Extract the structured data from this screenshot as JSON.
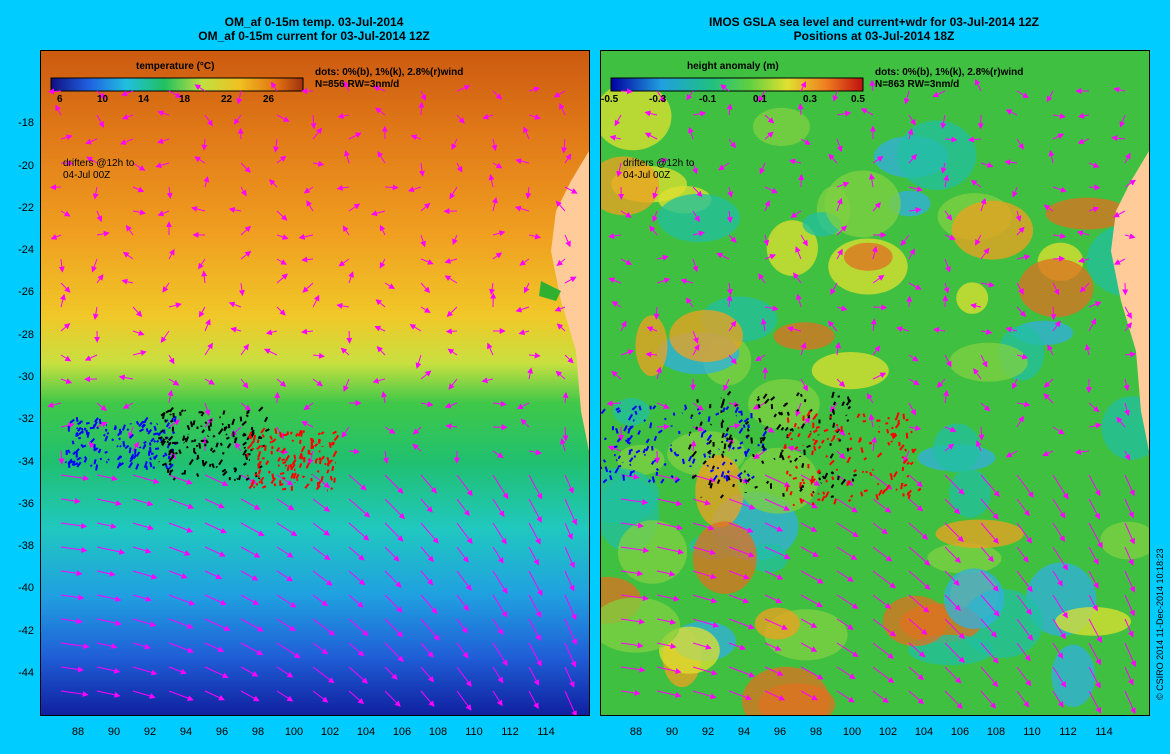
{
  "left_panel": {
    "title_line1": "OM_af 0-15m temp. 03-Jul-2014",
    "title_line2": "OM_af 0-15m current for 03-Jul-2014 12Z",
    "colorbar_label": "temperature (°C)",
    "colorbar_ticks": [
      "6",
      "10",
      "14",
      "18",
      "22",
      "26"
    ],
    "info_line1": "dots: 0%(b), 1%(k), 2.8%(r)wind",
    "info_line2": "N=856 RW=3nm/d",
    "drifter_note_line1": "drifters @12h to",
    "drifter_note_line2": "04-Jul 00Z"
  },
  "right_panel": {
    "title_line1": "IMOS GSLA sea level and current+wdr for 03-Jul-2014 12Z",
    "title_line2": "Positions at 03-Jul-2014 18Z",
    "colorbar_label": "height anomaly (m)",
    "colorbar_ticks": [
      "-0.5",
      "-0.3",
      "-0.1",
      "0.1",
      "0.3",
      "0.5"
    ],
    "info_line1": "dots: 0%(b), 1%(k), 2.8%(r)wind",
    "info_line2": "N=863 RW=3nm/d",
    "drifter_note_line1": "drifters @12h to",
    "drifter_note_line2": "04-Jul 00Z"
  },
  "y_axis_labels": [
    "-18",
    "-20",
    "-22",
    "-24",
    "-26",
    "-28",
    "-30",
    "-32",
    "-34",
    "-36",
    "-38",
    "-40",
    "-42",
    "-44"
  ],
  "x_axis_labels": [
    "88",
    "90",
    "92",
    "94",
    "96",
    "98",
    "100",
    "102",
    "104",
    "106",
    "108",
    "110",
    "112",
    "114"
  ],
  "credit": "© CSIRO 2014   11-Dec-2014 10:18:23",
  "colors": {
    "background": "#00ccff",
    "land": "#ffcc99",
    "current_arrows": "#ff00ff",
    "drifter_blue": "#0000ff",
    "drifter_black": "#000000",
    "drifter_red": "#ff0000"
  }
}
